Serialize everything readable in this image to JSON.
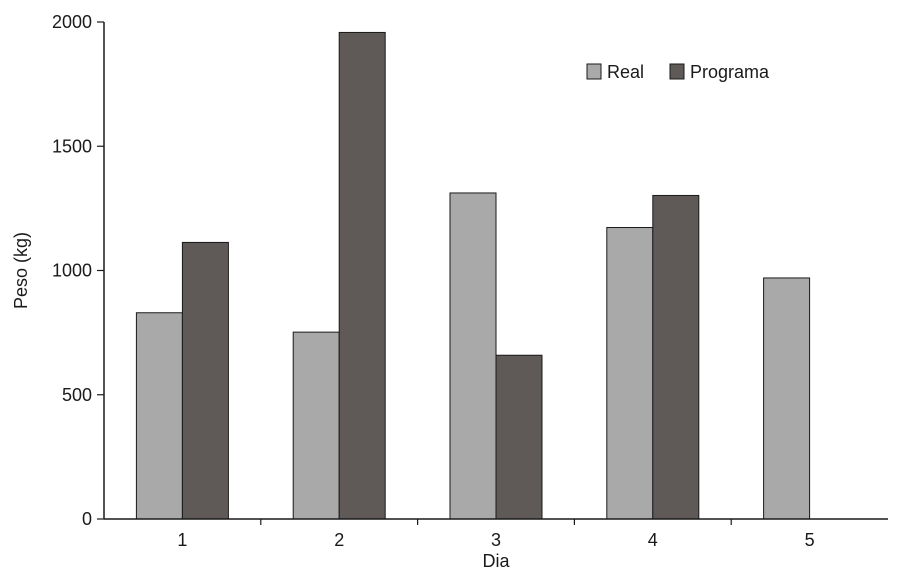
{
  "chart_data": {
    "type": "bar",
    "title": "",
    "xlabel": "Dia",
    "ylabel": "Peso (kg)",
    "categories": [
      "1",
      "2",
      "3",
      "4",
      "5"
    ],
    "series": [
      {
        "name": "Real",
        "values": [
          830,
          752,
          1312,
          1173,
          970
        ],
        "color": "#a9a9a9"
      },
      {
        "name": "Programa",
        "values": [
          1113,
          1958,
          659,
          1302,
          null
        ],
        "color": "#5f5a58"
      }
    ],
    "ylim": [
      0,
      2000
    ],
    "yticks": [
      0,
      500,
      1000,
      1500,
      2000
    ],
    "grid": false,
    "legend_position": "top-right"
  }
}
